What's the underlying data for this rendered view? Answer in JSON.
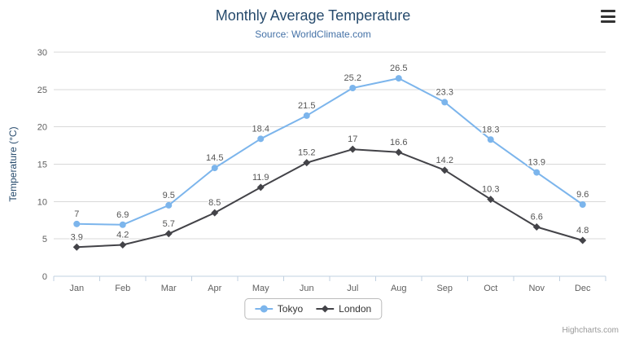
{
  "colors": {
    "title": "#274b6d",
    "subtitle": "#4572a7",
    "axis_title": "#274b6d",
    "axis_label": "#606060",
    "gridline": "#d8d8d8",
    "axis_line": "#c0d0e0",
    "data_label": "#555555",
    "legend_text": "#333333",
    "credit": "#999999"
  },
  "toolbar": {
    "context_menu_icon": "hamburger"
  },
  "credit_label": "Highcharts.com",
  "chart_data": {
    "type": "line",
    "title": "Monthly Average Temperature",
    "subtitle": "Source: WorldClimate.com",
    "categories": [
      "Jan",
      "Feb",
      "Mar",
      "Apr",
      "May",
      "Jun",
      "Jul",
      "Aug",
      "Sep",
      "Oct",
      "Nov",
      "Dec"
    ],
    "series": [
      {
        "name": "Tokyo",
        "color": "#7cb5ec",
        "marker": "circle",
        "values": [
          7,
          6.9,
          9.5,
          14.5,
          18.4,
          21.5,
          25.2,
          26.5,
          23.3,
          18.3,
          13.9,
          9.6
        ]
      },
      {
        "name": "London",
        "color": "#434348",
        "marker": "diamond",
        "values": [
          3.9,
          4.2,
          5.7,
          8.5,
          11.9,
          15.2,
          17,
          16.6,
          14.2,
          10.3,
          6.6,
          4.8
        ]
      }
    ],
    "xlabel": "",
    "ylabel": "Temperature (°C)",
    "ylim": [
      0,
      30
    ],
    "ytick_interval": 5,
    "grid": true,
    "legend_position": "bottom",
    "data_labels_visible": true
  }
}
